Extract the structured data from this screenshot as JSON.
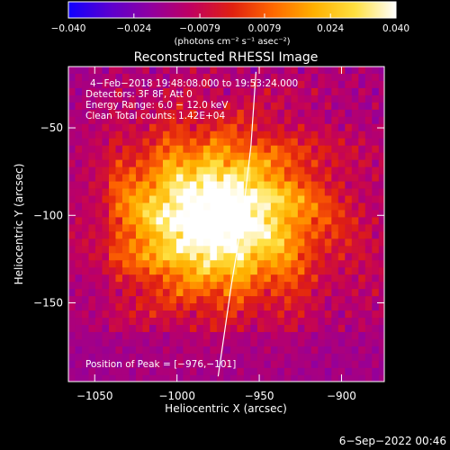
{
  "chart_data": {
    "type": "heatmap",
    "title": "Reconstructed RHESSI Image",
    "xlabel": "Heliocentric X (arcsec)",
    "ylabel": "Heliocentric Y (arcsec)",
    "xlim": [
      -1066,
      -874
    ],
    "ylim": [
      -195,
      -15
    ],
    "xticks": [
      -1050,
      -1000,
      -950,
      -900
    ],
    "xtick_labels": [
      "−1050",
      "−1000",
      "−950",
      "−900"
    ],
    "yticks": [
      -50,
      -100,
      -150
    ],
    "ytick_labels": [
      "−50",
      "−100",
      "−150"
    ],
    "colorbar": {
      "range": [
        -0.04,
        0.04
      ],
      "ticks": [
        -0.04,
        -0.024,
        -0.0079,
        0.0079,
        0.024,
        0.04
      ],
      "tick_labels": [
        "−0.040",
        "−0.024",
        "−0.0079",
        "0.0079",
        "0.024",
        "0.040"
      ],
      "units_label": "(photons cm⁻² s⁻¹ asec⁻²)",
      "colors": [
        "#1000ff",
        "#5a00d0",
        "#9000a0",
        "#c00060",
        "#e02010",
        "#ff6800",
        "#ffb000",
        "#ffe040",
        "#ffffff"
      ]
    },
    "info_lines": [
      "4−Feb−2018 19:48:08.000 to 19:53:24.000",
      "Detectors: 3F 8F, Att 0",
      "Energy Range: 6.0 − 12.0 keV",
      "Clean     Total counts: 1.42E+04"
    ],
    "peak": {
      "x": -976,
      "y": -101
    },
    "peak_label": "Position of Peak = [−976,−101]",
    "limb_curve": [
      [
        -952,
        -18
      ],
      [
        -955,
        -60
      ],
      [
        -960,
        -100
      ],
      [
        -967,
        -140
      ],
      [
        -975,
        -192
      ]
    ],
    "grid": false,
    "legend": "none"
  },
  "footer": {
    "date_stamp": "6−Sep−2022 00:46"
  },
  "colors": {
    "background": "#000000",
    "foreground": "#ffffff"
  }
}
